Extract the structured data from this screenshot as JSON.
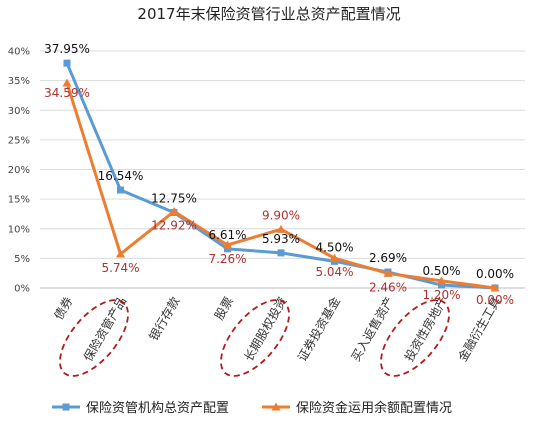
{
  "chart_data": {
    "type": "line",
    "title": "2017年末保险资管行业总资产配置情况",
    "categories": [
      "债券",
      "保险资管产品",
      "银行存款",
      "股票",
      "长期股权投资",
      "证券投资基金",
      "买入返售资产",
      "投资性房地产",
      "金融衍生工具"
    ],
    "ylim": [
      0,
      40
    ],
    "yticks": [
      "0%",
      "5%",
      "10%",
      "15%",
      "20%",
      "25%",
      "30%",
      "35%",
      "40%"
    ],
    "grid": true,
    "legend_position": "bottom",
    "series": [
      {
        "name": "保险资管机构总资产配置",
        "color": "#5b9bd5",
        "values": [
          37.95,
          16.54,
          12.75,
          6.61,
          5.93,
          4.5,
          2.69,
          0.5,
          0.0
        ],
        "labels": [
          "37.95%",
          "16.54%",
          "12.75%",
          "6.61%",
          "5.93%",
          "4.50%",
          "2.69%",
          "0.50%",
          "0.00%"
        ]
      },
      {
        "name": "保险资金运用余额配置情况",
        "color": "#ed7d31",
        "values": [
          34.59,
          5.74,
          12.92,
          7.26,
          9.9,
          5.04,
          2.46,
          1.2,
          0.0
        ],
        "labels": [
          "34.59%",
          "5.74%",
          "12.92%",
          "7.26%",
          "9.90%",
          "5.04%",
          "2.46%",
          "1.20%",
          "0.00%"
        ]
      }
    ]
  }
}
